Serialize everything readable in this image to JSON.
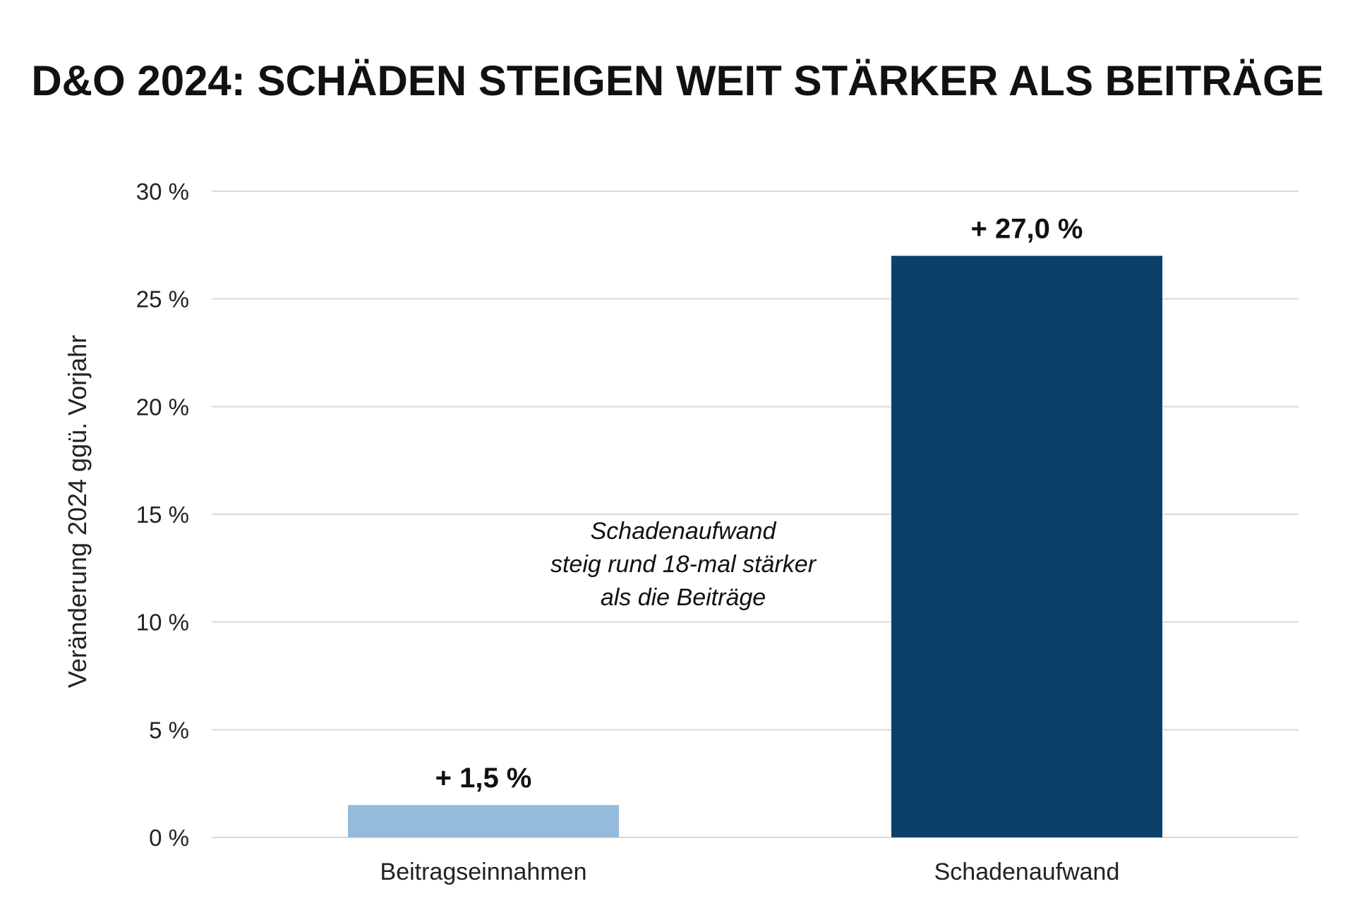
{
  "chart_data": {
    "type": "bar",
    "title": "D&O 2024: SCHÄDEN STEIGEN WEIT STÄRKER ALS BEITRÄGE",
    "ylabel": "Veränderung 2024 ggü. Vorjahr",
    "xlabel": "",
    "ylim": [
      0,
      30
    ],
    "yticks": [
      0,
      5,
      10,
      15,
      20,
      25,
      30
    ],
    "ytick_labels": [
      "0 %",
      "5 %",
      "10 %",
      "15 %",
      "20 %",
      "25 %",
      "30 %"
    ],
    "categories": [
      "Beitragseinnahmen",
      "Schadenaufwand"
    ],
    "values": [
      1.5,
      27.0
    ],
    "data_labels": [
      "+ 1,5 %",
      "+ 27,0 %"
    ],
    "colors": [
      "#95bbdb",
      "#0c406b"
    ],
    "grid": true,
    "legend": "none",
    "annotation": {
      "lines": [
        "Schadenaufwand",
        "steig rund 18-mal stärker",
        "als die Beiträge"
      ]
    }
  }
}
